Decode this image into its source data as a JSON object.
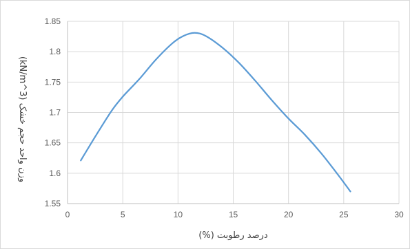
{
  "chart_data": {
    "type": "line",
    "title": "",
    "xlabel": "درصد رطوبت (%)",
    "ylabel": "وزن واحد حجم خشک (kN/m^3)",
    "xlim": [
      0,
      30
    ],
    "ylim": [
      1.55,
      1.85
    ],
    "x_ticks": [
      0,
      5,
      10,
      15,
      20,
      25,
      30
    ],
    "x_tick_labels": [
      "0",
      "5",
      "10",
      "15",
      "20",
      "25",
      "30"
    ],
    "y_ticks": [
      1.55,
      1.6,
      1.65,
      1.7,
      1.75,
      1.8,
      1.85
    ],
    "y_tick_labels": [
      "1.55",
      "1.6",
      "1.65",
      "1.7",
      "1.75",
      "1.8",
      "1.85"
    ],
    "grid": true,
    "legend": "none",
    "series": [
      {
        "color": "#5b9bd5",
        "x": [
          1.2,
          2.5,
          4.0,
          5.0,
          6.5,
          8.0,
          9.5,
          10.5,
          11.5,
          12.5,
          14.0,
          15.5,
          17.0,
          18.5,
          20.0,
          21.5,
          23.0,
          24.5,
          25.6
        ],
        "y": [
          1.621,
          1.66,
          1.703,
          1.726,
          1.755,
          1.787,
          1.814,
          1.826,
          1.831,
          1.826,
          1.807,
          1.782,
          1.752,
          1.72,
          1.69,
          1.663,
          1.632,
          1.597,
          1.57
        ]
      }
    ]
  }
}
